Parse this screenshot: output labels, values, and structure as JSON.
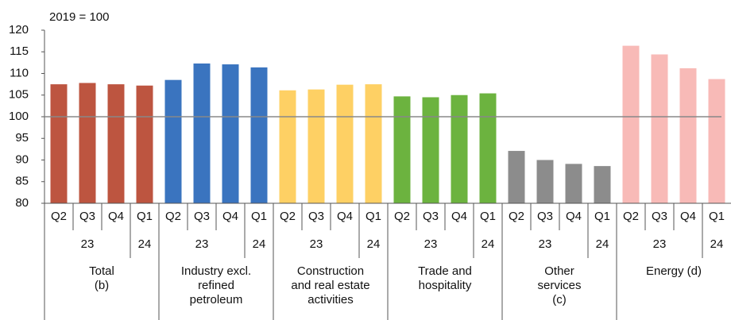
{
  "chart_data": {
    "type": "bar",
    "y_label": "2019 = 100",
    "ylim": [
      80,
      120
    ],
    "yticks": [
      80,
      85,
      90,
      95,
      100,
      105,
      110,
      115,
      120
    ],
    "reference_line": 100,
    "periods": [
      {
        "year": "23",
        "quarters": [
          "Q2",
          "Q3",
          "Q4"
        ]
      },
      {
        "year": "24",
        "quarters": [
          "Q1"
        ]
      }
    ],
    "series": [
      {
        "name": "Total\n(b)",
        "color": "#bd5540",
        "values": [
          107.5,
          107.8,
          107.5,
          107.2
        ]
      },
      {
        "name": "Industry excl.\nrefined\npetroleum",
        "color": "#3a74bf",
        "values": [
          108.5,
          112.3,
          112.1,
          111.4
        ]
      },
      {
        "name": "Construction\nand real estate\nactivities",
        "color": "#fed064",
        "values": [
          106.1,
          106.3,
          107.4,
          107.5
        ]
      },
      {
        "name": "Trade and\nhospitality",
        "color": "#6cb33f",
        "values": [
          104.7,
          104.5,
          105.0,
          105.4
        ]
      },
      {
        "name": "Other\nservices\n(c)",
        "color": "#8c8c8c",
        "values": [
          92.1,
          90.0,
          89.1,
          88.6
        ]
      },
      {
        "name": "Energy (d)",
        "color": "#f8bab7",
        "values": [
          116.4,
          114.4,
          111.2,
          108.7
        ]
      }
    ]
  }
}
